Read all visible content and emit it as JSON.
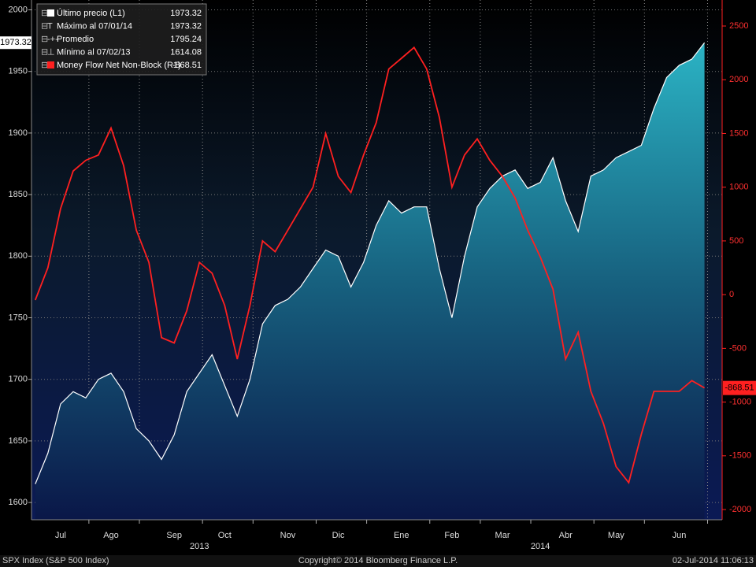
{
  "chart_data": {
    "type": "area-line",
    "footer_left": "SPX Index (S&P 500 Index)",
    "footer_center": "Copyright© 2014 Bloomberg Finance L.P.",
    "footer_right": "02-Jul-2014 11:06:13",
    "legend": [
      {
        "label": "Último precio (L1)",
        "value": 1973.32
      },
      {
        "label": "Máximo al 07/01/14",
        "value": 1973.32
      },
      {
        "label": "Promedio",
        "value": 1795.24
      },
      {
        "label": "Mínimo al 07/02/13",
        "value": 1614.08
      },
      {
        "label": "Money Flow Net Non-Block (R1)",
        "value": -868.51
      }
    ],
    "xlim": [
      -0.3,
      54.4
    ],
    "xticks": [
      {
        "value": 2,
        "label": "Jul"
      },
      {
        "value": 6,
        "label": "Ago"
      },
      {
        "value": 11,
        "label": "Sep"
      },
      {
        "value": 15,
        "label": "Oct"
      },
      {
        "value": 20,
        "label": "Nov"
      },
      {
        "value": 24,
        "label": "Dic"
      },
      {
        "value": 29,
        "label": "Ene"
      },
      {
        "value": 33,
        "label": "Feb"
      },
      {
        "value": 37,
        "label": "Mar"
      },
      {
        "value": 42,
        "label": "Abr"
      },
      {
        "value": 46,
        "label": "May"
      },
      {
        "value": 51,
        "label": "Jun"
      }
    ],
    "year_ticks": [
      {
        "value": 13,
        "label": "2013"
      },
      {
        "value": 40,
        "label": "2014"
      }
    ],
    "ylim": [
      1586,
      2008
    ],
    "yticks": [
      1600,
      1650,
      1700,
      1750,
      1800,
      1850,
      1900,
      1950,
      2000
    ],
    "y2lim": [
      -2095,
      2742
    ],
    "y2ticks": [
      -2000,
      -1500,
      -1000,
      -500,
      0,
      500,
      1000,
      1500,
      2000,
      2500
    ],
    "grid": true,
    "series": [
      {
        "name": "Último precio (L1)",
        "color": "#ffffff",
        "values": [
          1615,
          1640,
          1680,
          1690,
          1685,
          1700,
          1705,
          1690,
          1660,
          1650,
          1635,
          1655,
          1690,
          1705,
          1720,
          1695,
          1670,
          1700,
          1745,
          1760,
          1765,
          1775,
          1790,
          1805,
          1800,
          1775,
          1795,
          1825,
          1845,
          1835,
          1840,
          1840,
          1790,
          1750,
          1800,
          1840,
          1855,
          1865,
          1870,
          1855,
          1860,
          1880,
          1845,
          1820,
          1865,
          1870,
          1880,
          1885,
          1890,
          1920,
          1945,
          1955,
          1960,
          1973.32
        ]
      },
      {
        "name": "Money Flow Net Non-Block (R1)",
        "color": "#ff2020",
        "axis": "y2",
        "values": [
          -50,
          250,
          800,
          1150,
          1250,
          1300,
          1550,
          1200,
          600,
          300,
          -400,
          -450,
          -150,
          300,
          200,
          -100,
          -600,
          -100,
          500,
          400,
          600,
          800,
          1000,
          1500,
          1100,
          950,
          1300,
          1600,
          2100,
          2200,
          2300,
          2100,
          1650,
          1000,
          1300,
          1450,
          1250,
          1100,
          900,
          600,
          350,
          50,
          -600,
          -350,
          -900,
          -1200,
          -1600,
          -1750,
          -1300,
          -900,
          -900,
          -900,
          -800,
          -868.51
        ]
      }
    ]
  }
}
